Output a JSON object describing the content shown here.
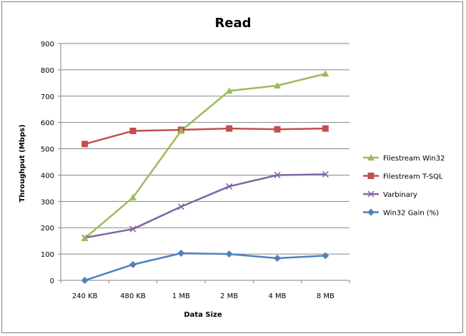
{
  "chart_data": {
    "type": "line",
    "title": "Read",
    "xlabel": "Data Size",
    "ylabel": "Throughput (Mbps)",
    "categories": [
      "240 KB",
      "480 KB",
      "1 MB",
      "2 MB",
      "4 MB",
      "8 MB"
    ],
    "ylim": [
      0,
      900
    ],
    "yticks": [
      0,
      100,
      200,
      300,
      400,
      500,
      600,
      700,
      800,
      900
    ],
    "grid": "horizontal",
    "legend_position": "right",
    "series": [
      {
        "name": "Filestream Win32",
        "values": [
          160,
          315,
          568,
          720,
          740,
          785
        ],
        "color": "#9bbb59",
        "marker": "triangle"
      },
      {
        "name": "Filestream T-SQL",
        "values": [
          518,
          568,
          572,
          577,
          574,
          577
        ],
        "color": "#c0504d",
        "marker": "square"
      },
      {
        "name": "Varbinary",
        "values": [
          162,
          195,
          280,
          357,
          400,
          403
        ],
        "color": "#8064a2",
        "marker": "x"
      },
      {
        "name": "Win32 Gain (%)",
        "values": [
          0,
          60,
          103,
          100,
          84,
          94
        ],
        "color": "#4f81bd",
        "marker": "diamond"
      }
    ]
  }
}
